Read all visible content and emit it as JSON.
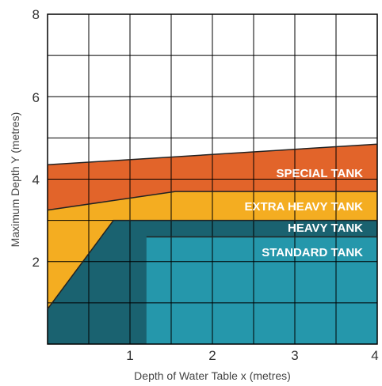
{
  "chart_data": {
    "type": "area",
    "title": "",
    "xlabel": "Depth of Water Table x (metres)",
    "ylabel": "Maximum Depth Y (metres)",
    "xlim": [
      0,
      4
    ],
    "ylim": [
      0,
      8
    ],
    "x_ticks": [
      "1",
      "2",
      "3",
      "4"
    ],
    "y_ticks": [
      "2",
      "4",
      "6",
      "8"
    ],
    "grid": true,
    "colors": {
      "special": "#e2642a",
      "extra_heavy": "#f4ad21",
      "heavy": "#1a6270",
      "standard": "#2597ab",
      "grid": "#000000",
      "label": "#ffffff"
    },
    "regions": [
      {
        "key": "special",
        "label": "SPECIAL TANK",
        "upper_boundary": [
          [
            0,
            4.35
          ],
          [
            4,
            4.85
          ]
        ],
        "lower_boundary": [
          [
            0,
            3.25
          ],
          [
            1.55,
            3.7
          ],
          [
            4,
            3.7
          ]
        ]
      },
      {
        "key": "extra_heavy",
        "label": "EXTRA HEAVY TANK",
        "upper_boundary": [
          [
            0,
            3.25
          ],
          [
            1.55,
            3.7
          ],
          [
            4,
            3.7
          ]
        ],
        "lower_boundary": [
          [
            0,
            0.85
          ],
          [
            0.8,
            3.0
          ],
          [
            4,
            3.0
          ]
        ]
      },
      {
        "key": "heavy",
        "label": "HEAVY TANK",
        "upper_boundary": [
          [
            0,
            0.85
          ],
          [
            0.8,
            3.0
          ],
          [
            4,
            3.0
          ]
        ],
        "lower_boundary": [
          [
            0,
            0
          ],
          [
            4,
            0
          ]
        ]
      },
      {
        "key": "standard",
        "label": "STANDARD TANK",
        "upper_boundary": [
          [
            1.2,
            2.6
          ],
          [
            4,
            2.6
          ]
        ],
        "lower_boundary": [
          [
            1.2,
            0
          ],
          [
            4,
            0
          ]
        ]
      }
    ]
  }
}
